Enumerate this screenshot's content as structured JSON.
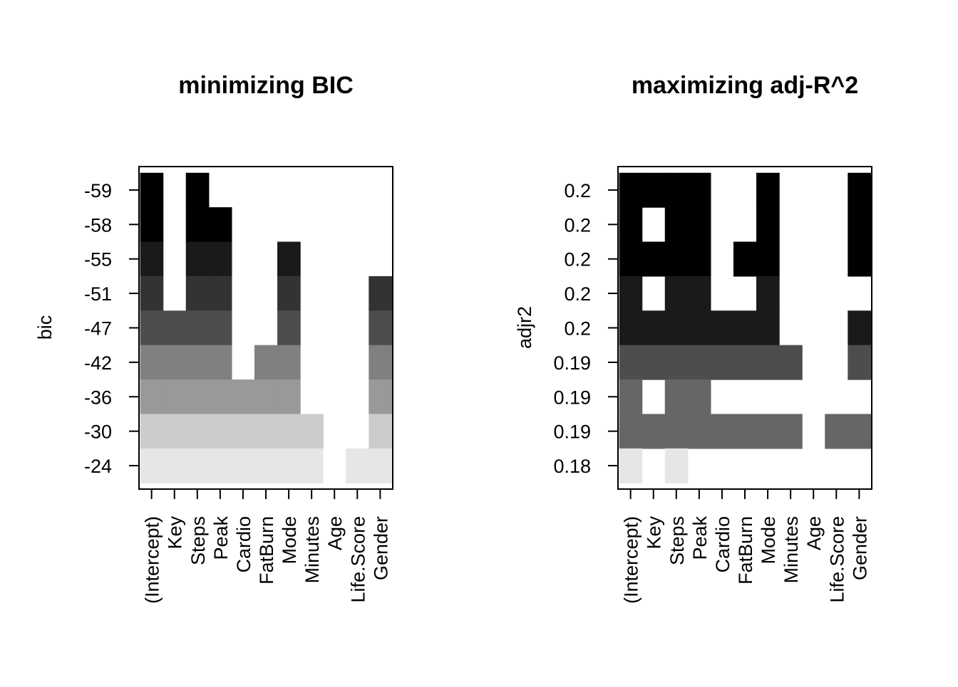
{
  "chart_data": [
    {
      "type": "heatmap",
      "title": "minimizing BIC",
      "ylabel": "bic",
      "xlabel": "",
      "variables": [
        "(Intercept)",
        "Key",
        "Steps",
        "Peak",
        "Cardio",
        "FatBurn",
        "Mode",
        "Minutes",
        "Age",
        "Life.Score",
        "Gender"
      ],
      "row_labels": [
        "-59",
        "-58",
        "-55",
        "-51",
        "-47",
        "-42",
        "-36",
        "-30",
        "-24"
      ],
      "row_colors": [
        "#000000",
        "#000000",
        "#1a1a1a",
        "#333333",
        "#4d4d4d",
        "#808080",
        "#999999",
        "#cccccc",
        "#e6e6e6"
      ],
      "included": [
        [
          1,
          0,
          1,
          0,
          0,
          0,
          0,
          0,
          0,
          0,
          0
        ],
        [
          1,
          0,
          1,
          1,
          0,
          0,
          0,
          0,
          0,
          0,
          0
        ],
        [
          1,
          0,
          1,
          1,
          0,
          0,
          1,
          0,
          0,
          0,
          0
        ],
        [
          1,
          0,
          1,
          1,
          0,
          0,
          1,
          0,
          0,
          0,
          1
        ],
        [
          1,
          1,
          1,
          1,
          0,
          0,
          1,
          0,
          0,
          0,
          1
        ],
        [
          1,
          1,
          1,
          1,
          0,
          1,
          1,
          0,
          0,
          0,
          1
        ],
        [
          1,
          1,
          1,
          1,
          1,
          1,
          1,
          0,
          0,
          0,
          1
        ],
        [
          1,
          1,
          1,
          1,
          1,
          1,
          1,
          1,
          0,
          0,
          1
        ],
        [
          1,
          1,
          1,
          1,
          1,
          1,
          1,
          1,
          0,
          1,
          1
        ]
      ]
    },
    {
      "type": "heatmap",
      "title": "maximizing adj-R^2",
      "ylabel": "adjr2",
      "xlabel": "",
      "variables": [
        "(Intercept)",
        "Key",
        "Steps",
        "Peak",
        "Cardio",
        "FatBurn",
        "Mode",
        "Minutes",
        "Age",
        "Life.Score",
        "Gender"
      ],
      "row_labels": [
        "0.2",
        "0.2",
        "0.2",
        "0.2",
        "0.2",
        "0.19",
        "0.19",
        "0.19",
        "0.18"
      ],
      "row_colors": [
        "#000000",
        "#000000",
        "#000000",
        "#1a1a1a",
        "#1a1a1a",
        "#4d4d4d",
        "#666666",
        "#666666",
        "#e6e6e6"
      ],
      "included": [
        [
          1,
          1,
          1,
          1,
          0,
          0,
          1,
          0,
          0,
          0,
          1
        ],
        [
          1,
          0,
          1,
          1,
          0,
          0,
          1,
          0,
          0,
          0,
          1
        ],
        [
          1,
          1,
          1,
          1,
          0,
          1,
          1,
          0,
          0,
          0,
          1
        ],
        [
          1,
          0,
          1,
          1,
          0,
          0,
          1,
          0,
          0,
          0,
          0
        ],
        [
          1,
          1,
          1,
          1,
          1,
          1,
          1,
          0,
          0,
          0,
          1
        ],
        [
          1,
          1,
          1,
          1,
          1,
          1,
          1,
          1,
          0,
          0,
          1
        ],
        [
          1,
          0,
          1,
          1,
          0,
          0,
          0,
          0,
          0,
          0,
          0
        ],
        [
          1,
          1,
          1,
          1,
          1,
          1,
          1,
          1,
          0,
          1,
          1
        ],
        [
          1,
          0,
          1,
          0,
          0,
          0,
          0,
          0,
          0,
          0,
          0
        ]
      ]
    }
  ]
}
